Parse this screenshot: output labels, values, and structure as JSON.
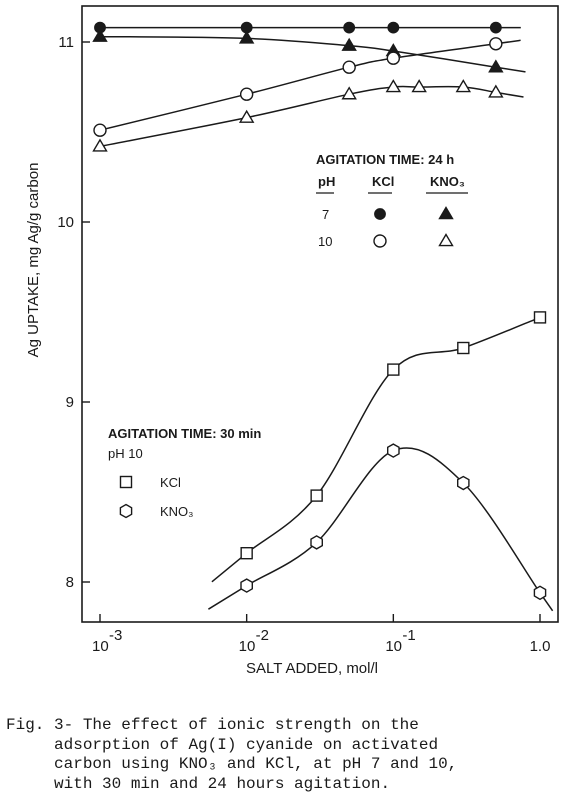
{
  "chart_data": {
    "type": "line",
    "xlabel": "SALT ADDED, mol/l",
    "ylabel": "Ag UPTAKE, mg Ag/g carbon",
    "x_scale": "log",
    "xlim": [
      0.0006,
      1.2
    ],
    "ylim": [
      7.9,
      11.1
    ],
    "x_ticks": [
      {
        "value": 0.001,
        "base": "10",
        "exp": "-3"
      },
      {
        "value": 0.01,
        "base": "10",
        "exp": "-2"
      },
      {
        "value": 0.1,
        "base": "10",
        "exp": "-1"
      },
      {
        "value": 1.0,
        "base": "1.0",
        "exp": ""
      }
    ],
    "y_ticks": [
      {
        "value": 8,
        "label": "8"
      },
      {
        "value": 9,
        "label": "9"
      },
      {
        "value": 10,
        "label": "10"
      },
      {
        "value": 11,
        "label": "11"
      }
    ],
    "series": [
      {
        "key": "kcl_ph7_24h",
        "marker": "filled-circle",
        "x": [
          0.001,
          0.01,
          0.05,
          0.1,
          0.5
        ],
        "y": [
          11.08,
          11.08,
          11.08,
          11.08,
          11.08
        ]
      },
      {
        "key": "kno3_ph7_24h",
        "marker": "filled-triangle",
        "x": [
          0.001,
          0.01,
          0.05,
          0.1,
          0.5
        ],
        "y": [
          11.03,
          11.02,
          10.98,
          10.95,
          10.86
        ]
      },
      {
        "key": "kcl_ph10_24h",
        "marker": "open-circle",
        "x": [
          0.001,
          0.01,
          0.05,
          0.1,
          0.5
        ],
        "y": [
          10.51,
          10.71,
          10.86,
          10.91,
          10.99
        ]
      },
      {
        "key": "kno3_ph10_24h",
        "marker": "open-triangle",
        "x": [
          0.001,
          0.01,
          0.05,
          0.1,
          0.15,
          0.3,
          0.5
        ],
        "y": [
          10.42,
          10.58,
          10.71,
          10.75,
          10.75,
          10.75,
          10.72
        ]
      },
      {
        "key": "kcl_ph10_30min",
        "marker": "open-square",
        "x": [
          0.01,
          0.03,
          0.1,
          0.3,
          1.0
        ],
        "y": [
          8.16,
          8.48,
          9.18,
          9.3,
          9.47
        ]
      },
      {
        "key": "kno3_ph10_30min",
        "marker": "open-hexagon",
        "x": [
          0.01,
          0.03,
          0.1,
          0.3,
          1.0
        ],
        "y": [
          7.98,
          8.22,
          8.73,
          8.55,
          7.94
        ]
      }
    ],
    "legend_24h": {
      "title": "AGITATION TIME: 24 h",
      "col_ph": "pH",
      "col_kcl": "KCl",
      "col_kno3": "KNO₃",
      "rows": [
        {
          "ph": "7",
          "kcl_marker": "filled-circle",
          "kno3_marker": "filled-triangle"
        },
        {
          "ph": "10",
          "kcl_marker": "open-circle",
          "kno3_marker": "open-triangle"
        }
      ]
    },
    "legend_30min": {
      "title": "AGITATION TIME: 30 min",
      "subtitle": "pH 10",
      "entries": [
        {
          "label": "KCl",
          "marker": "open-square"
        },
        {
          "label": "KNO₃",
          "marker": "open-hexagon"
        }
      ]
    }
  },
  "caption": "Fig. 3- The effect of ionic strength on the\n     adsorption of Ag(I) cyanide on activated\n     carbon using KNO₃ and KCl, at pH 7 and 10,\n     with 30 min and 24 hours agitation."
}
